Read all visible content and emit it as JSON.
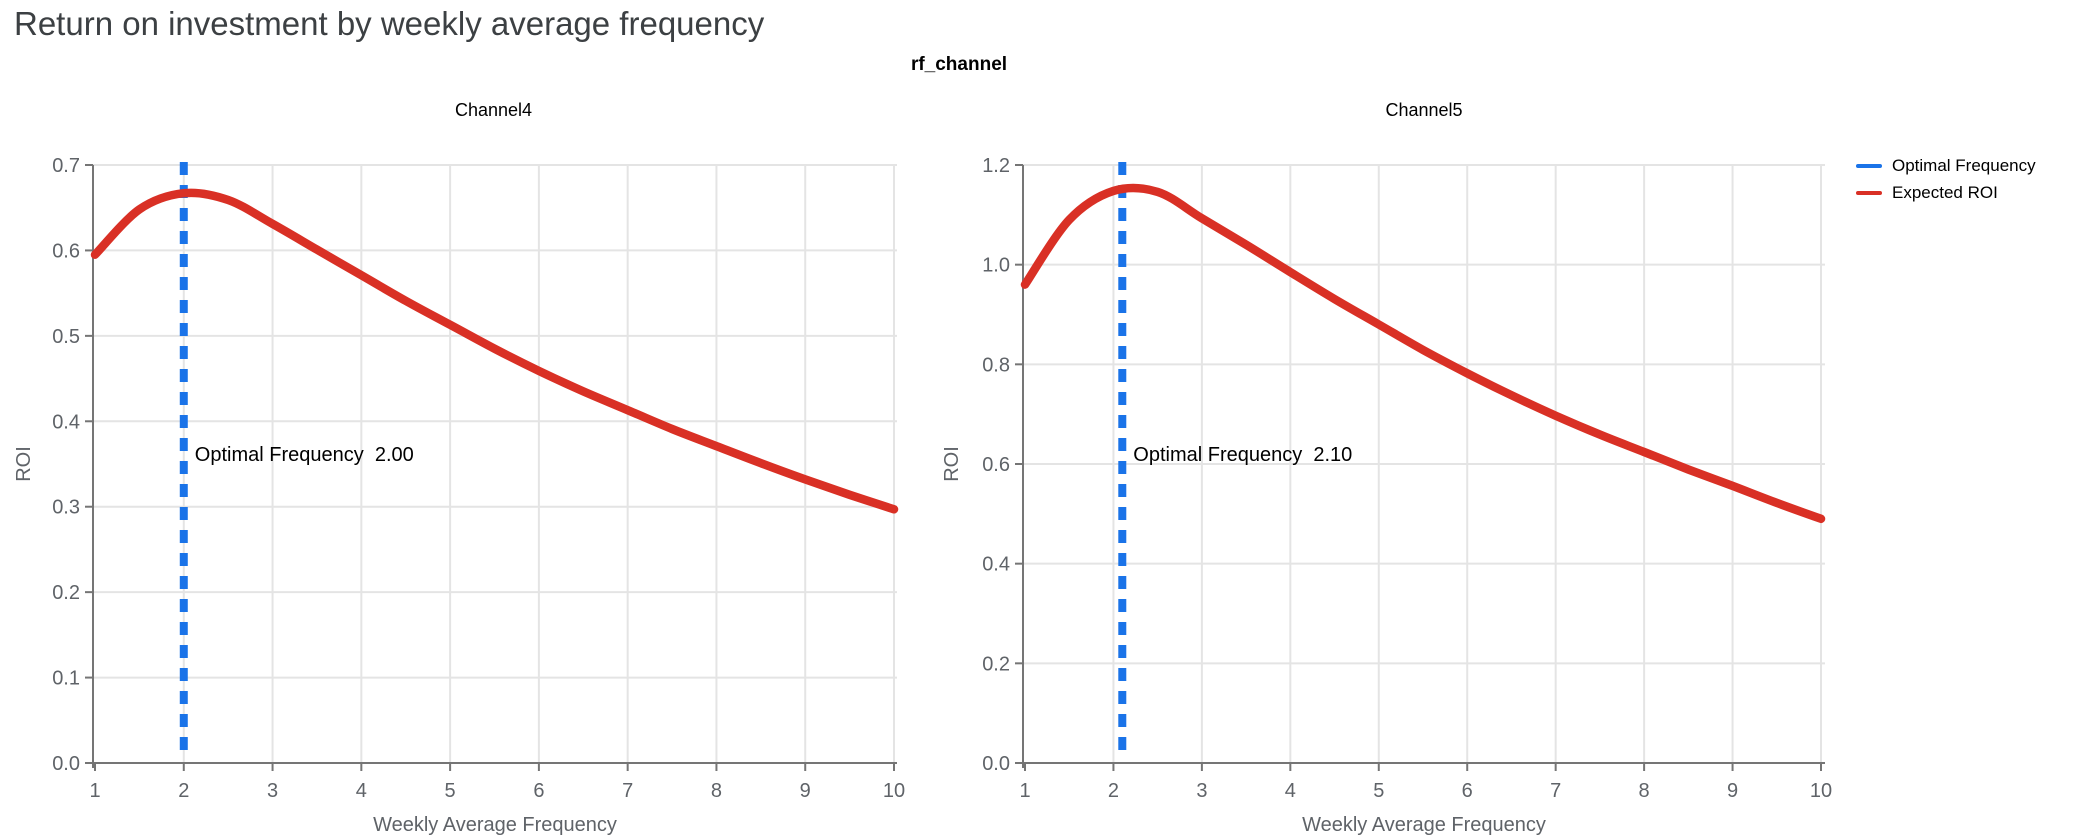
{
  "page": {
    "title": "Return on investment by weekly average frequency"
  },
  "figure": {
    "facet_title": "rf_channel",
    "legend": [
      {
        "label": "Optimal Frequency",
        "color": "#1a73e8"
      },
      {
        "label": "Expected ROI",
        "color": "#d93025"
      }
    ],
    "colors": {
      "optimal_frequency_line": "#1a73e8",
      "expected_roi_line": "#d93025",
      "gridline": "#e4e4e4",
      "axis_line": "#757575",
      "tick_label": "#5f6368",
      "page_title": "#3c4043",
      "annotation_text": "#000000"
    }
  },
  "chart_data": [
    {
      "type": "line",
      "title": "Channel4",
      "xlabel": "Weekly Average Frequency",
      "ylabel": "ROI",
      "xlim": [
        1,
        10
      ],
      "ylim": [
        0.0,
        0.7
      ],
      "xticks": [
        1,
        2,
        3,
        4,
        5,
        6,
        7,
        8,
        9,
        10
      ],
      "yticks": [
        0.0,
        0.1,
        0.2,
        0.3,
        0.4,
        0.5,
        0.6,
        0.7
      ],
      "ytick_labels": [
        "0.0",
        "0.1",
        "0.2",
        "0.3",
        "0.4",
        "0.5",
        "0.6",
        "0.7"
      ],
      "grid": true,
      "legend_position": "top-right-of-figure",
      "series": [
        {
          "name": "Expected ROI",
          "color": "#d93025",
          "x": [
            1,
            1.5,
            2,
            2.5,
            3,
            3.5,
            4,
            4.5,
            5,
            5.5,
            6,
            6.5,
            7,
            7.5,
            8,
            8.5,
            9,
            9.5,
            10
          ],
          "y": [
            0.595,
            0.648,
            0.667,
            0.659,
            0.631,
            0.601,
            0.571,
            0.541,
            0.513,
            0.485,
            0.459,
            0.435,
            0.413,
            0.391,
            0.371,
            0.351,
            0.332,
            0.314,
            0.297
          ]
        }
      ],
      "vline": {
        "name": "Optimal Frequency",
        "x": 2.0,
        "color": "#1a73e8",
        "style": "dashed"
      },
      "annotation": "Optimal Frequency  2.00"
    },
    {
      "type": "line",
      "title": "Channel5",
      "xlabel": "Weekly Average Frequency",
      "ylabel": "ROI",
      "xlim": [
        1,
        10
      ],
      "ylim": [
        0.0,
        1.2
      ],
      "xticks": [
        1,
        2,
        3,
        4,
        5,
        6,
        7,
        8,
        9,
        10
      ],
      "yticks": [
        0.0,
        0.2,
        0.4,
        0.6,
        0.8,
        1.0,
        1.2
      ],
      "ytick_labels": [
        "0.0",
        "0.2",
        "0.4",
        "0.6",
        "0.8",
        "1.0",
        "1.2"
      ],
      "grid": true,
      "legend_position": "top-right-of-figure",
      "series": [
        {
          "name": "Expected ROI",
          "color": "#d93025",
          "x": [
            1,
            1.5,
            2,
            2.5,
            3,
            3.5,
            4,
            4.5,
            5,
            5.5,
            6,
            6.5,
            7,
            7.5,
            8,
            8.5,
            9,
            9.5,
            10
          ],
          "y": [
            0.96,
            1.09,
            1.148,
            1.146,
            1.093,
            1.04,
            0.985,
            0.931,
            0.88,
            0.829,
            0.782,
            0.738,
            0.697,
            0.659,
            0.624,
            0.589,
            0.556,
            0.522,
            0.49
          ]
        }
      ],
      "vline": {
        "name": "Optimal Frequency",
        "x": 2.1,
        "color": "#1a73e8",
        "style": "dashed"
      },
      "annotation": "Optimal Frequency  2.10"
    }
  ]
}
